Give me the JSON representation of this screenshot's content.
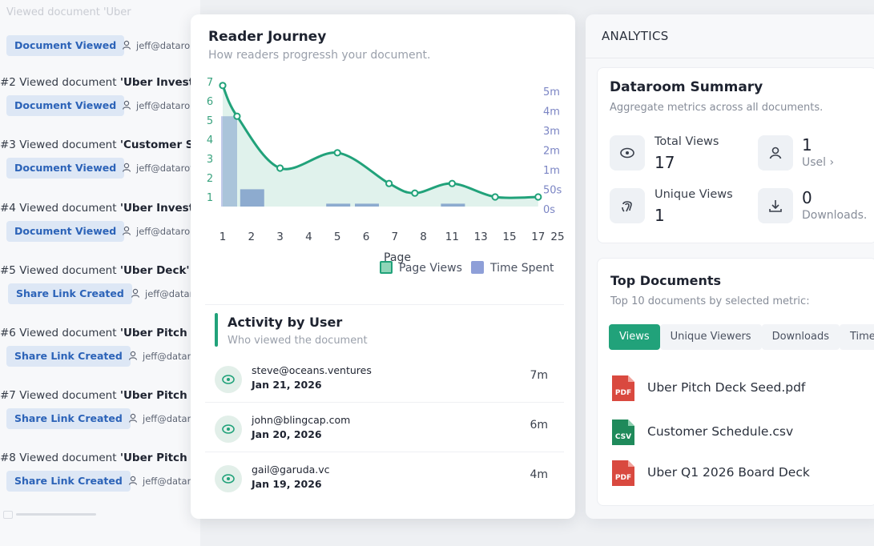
{
  "activity_feed": {
    "top_faded_text": "Viewed document 'Uber",
    "items": [
      {
        "title_prefix": "",
        "title_doc": "",
        "badge": "Document Viewed",
        "user": "jeff@dataron"
      },
      {
        "title_prefix": "#2 Viewed document ",
        "title_doc": "'Uber Investn",
        "badge": "Document Viewed",
        "user": "jeff@dataro"
      },
      {
        "title_prefix": "#3 Viewed document ",
        "title_doc": "'Customer Sc",
        "badge": "Document Viewed",
        "user": "jeff@datarov"
      },
      {
        "title_prefix": "#4 Viewed document ",
        "title_doc": "'Uber Investn",
        "badge": "Document Viewed",
        "user": "jeff@dataro"
      },
      {
        "title_prefix": "#5 Viewed document ",
        "title_doc": "'Uber Deck'",
        "badge": "Share Link Created",
        "user": "jeff@datar"
      },
      {
        "title_prefix": "#6 Viewed document ",
        "title_doc": "'Uber Pitch D",
        "badge": "Share Link Created",
        "user": "jeff@datarc"
      },
      {
        "title_prefix": "#7 Viewed document ",
        "title_doc": "'Uber Pitch D",
        "badge": "Share Link Created",
        "user": "jeff@datar"
      },
      {
        "title_prefix": "#8 Viewed document ",
        "title_doc": "'Uber Pitch D",
        "badge": "Share Link Created",
        "user": "jeff@datarc"
      }
    ]
  },
  "journey": {
    "title": "Reader Journey",
    "subtitle": "How readers progressh your document.",
    "legend": {
      "page_views": "Page Views",
      "time_spent": "Time Spent"
    }
  },
  "chart_data": {
    "type": "area",
    "title": "",
    "xlabel": "Page",
    "ylabel_left": "",
    "ylabel_right": "",
    "x_ticks": [
      "1",
      "2",
      "3",
      "4",
      "5",
      "6",
      "7",
      "8",
      "11",
      "13",
      "15",
      "17",
      "25"
    ],
    "y_left_ticks": [
      "1",
      "2",
      "3",
      "4",
      "5",
      "6",
      "7"
    ],
    "y_right_ticks": [
      "0s",
      "50s",
      "1m",
      "2m",
      "3m",
      "4m",
      "5m"
    ],
    "ylim_left": [
      0.5,
      7
    ],
    "series": [
      {
        "name": "Page Views",
        "kind": "area",
        "color": "#21a27a",
        "points": [
          {
            "x": "1",
            "y": 6.8
          },
          {
            "x": "1.5",
            "y": 5.2
          },
          {
            "x": "3",
            "y": 2.5
          },
          {
            "x": "5",
            "y": 3.3
          },
          {
            "x": "6.8",
            "y": 1.7
          },
          {
            "x": "7.7",
            "y": 1.2
          },
          {
            "x": "11",
            "y": 1.7
          },
          {
            "x": "14",
            "y": 1.0
          },
          {
            "x": "17",
            "y": 1.0
          }
        ]
      },
      {
        "name": "Time Spent",
        "kind": "bar",
        "color": "#8e9fd8",
        "bars": [
          {
            "x": "1",
            "value_rank": 5.2
          },
          {
            "x": "2",
            "value_rank": 1.4
          },
          {
            "x": "5",
            "value_rank": 0.65
          },
          {
            "x": "6",
            "value_rank": 0.65
          },
          {
            "x": "11",
            "value_rank": 0.65
          }
        ]
      }
    ]
  },
  "activity_by_user": {
    "title": "Activity by User",
    "subtitle": "Who viewed the document",
    "rows": [
      {
        "email": "steve@oceans.ventures",
        "date": "Jan 21, 2026",
        "time": "7m"
      },
      {
        "email": "john@blingcap.com",
        "date": "Jan 20, 2026",
        "time": "6m"
      },
      {
        "email": "gail@garuda.vc",
        "date": "Jan 19, 2026",
        "time": "4m"
      }
    ]
  },
  "analytics": {
    "heading": "ANALYTICS",
    "summary": {
      "title": "Dataroom Summary",
      "subtitle": "Aggregate metrics across all documents.",
      "total_views_label": "Total Views",
      "total_views_value": "17",
      "unique_views_label": "Unique Views",
      "unique_views_value": "1",
      "users_value": "1",
      "users_label": "Usel",
      "downloads_value": "0",
      "downloads_label": "Downloads."
    },
    "top_docs": {
      "title": "Top Documents",
      "subtitle": "Top 10 documents by selected metric:",
      "tabs": [
        "Views",
        "Unique Viewers",
        "Downloads",
        "Time S"
      ],
      "docs": [
        {
          "name": "Uber Pitch Deck Seed.pdf",
          "type": "PDF",
          "color": "#d9493f"
        },
        {
          "name": "Customer Schedule.csv",
          "type": "CSV",
          "color": "#1f8a5b"
        },
        {
          "name": "Uber Q1 2026 Board Deck",
          "type": "PDF",
          "color": "#d9493f"
        }
      ]
    }
  }
}
